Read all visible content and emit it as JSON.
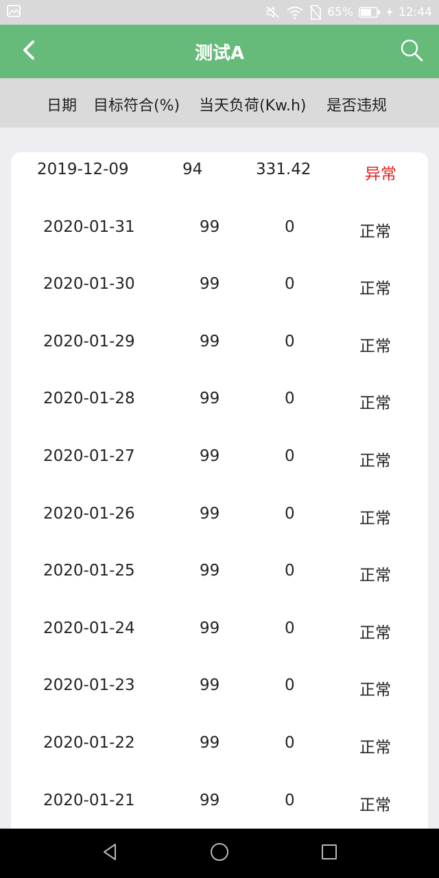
{
  "status_bar": {
    "battery": "65%",
    "time": "12:44",
    "icons": [
      "gallery-icon",
      "mute-icon",
      "wifi-icon",
      "no-sim-icon",
      "battery-icon",
      "charging-icon"
    ]
  },
  "app_bar": {
    "title": "测试A",
    "back_icon": "chevron-left-icon",
    "search_icon": "search-icon",
    "color": "#66bb7a"
  },
  "table": {
    "headers": [
      "日期",
      "目标符合(%)",
      "当天负荷(Kw.h)",
      "是否违规"
    ],
    "rows": [
      {
        "date": "2019-12-09",
        "target": "94",
        "load": "331.42",
        "status": "异常",
        "abnormal": true
      },
      {
        "date": "2020-01-31",
        "target": "99",
        "load": "0",
        "status": "正常",
        "abnormal": false
      },
      {
        "date": "2020-01-30",
        "target": "99",
        "load": "0",
        "status": "正常",
        "abnormal": false
      },
      {
        "date": "2020-01-29",
        "target": "99",
        "load": "0",
        "status": "正常",
        "abnormal": false
      },
      {
        "date": "2020-01-28",
        "target": "99",
        "load": "0",
        "status": "正常",
        "abnormal": false
      },
      {
        "date": "2020-01-27",
        "target": "99",
        "load": "0",
        "status": "正常",
        "abnormal": false
      },
      {
        "date": "2020-01-26",
        "target": "99",
        "load": "0",
        "status": "正常",
        "abnormal": false
      },
      {
        "date": "2020-01-25",
        "target": "99",
        "load": "0",
        "status": "正常",
        "abnormal": false
      },
      {
        "date": "2020-01-24",
        "target": "99",
        "load": "0",
        "status": "正常",
        "abnormal": false
      },
      {
        "date": "2020-01-23",
        "target": "99",
        "load": "0",
        "status": "正常",
        "abnormal": false
      },
      {
        "date": "2020-01-22",
        "target": "99",
        "load": "0",
        "status": "正常",
        "abnormal": false
      },
      {
        "date": "2020-01-21",
        "target": "99",
        "load": "0",
        "status": "正常",
        "abnormal": false
      }
    ],
    "abnormal_color": "#e02020",
    "normal_color": "#222222"
  },
  "nav_bar": {
    "icons": [
      "back-triangle-icon",
      "home-circle-icon",
      "recents-square-icon"
    ]
  }
}
